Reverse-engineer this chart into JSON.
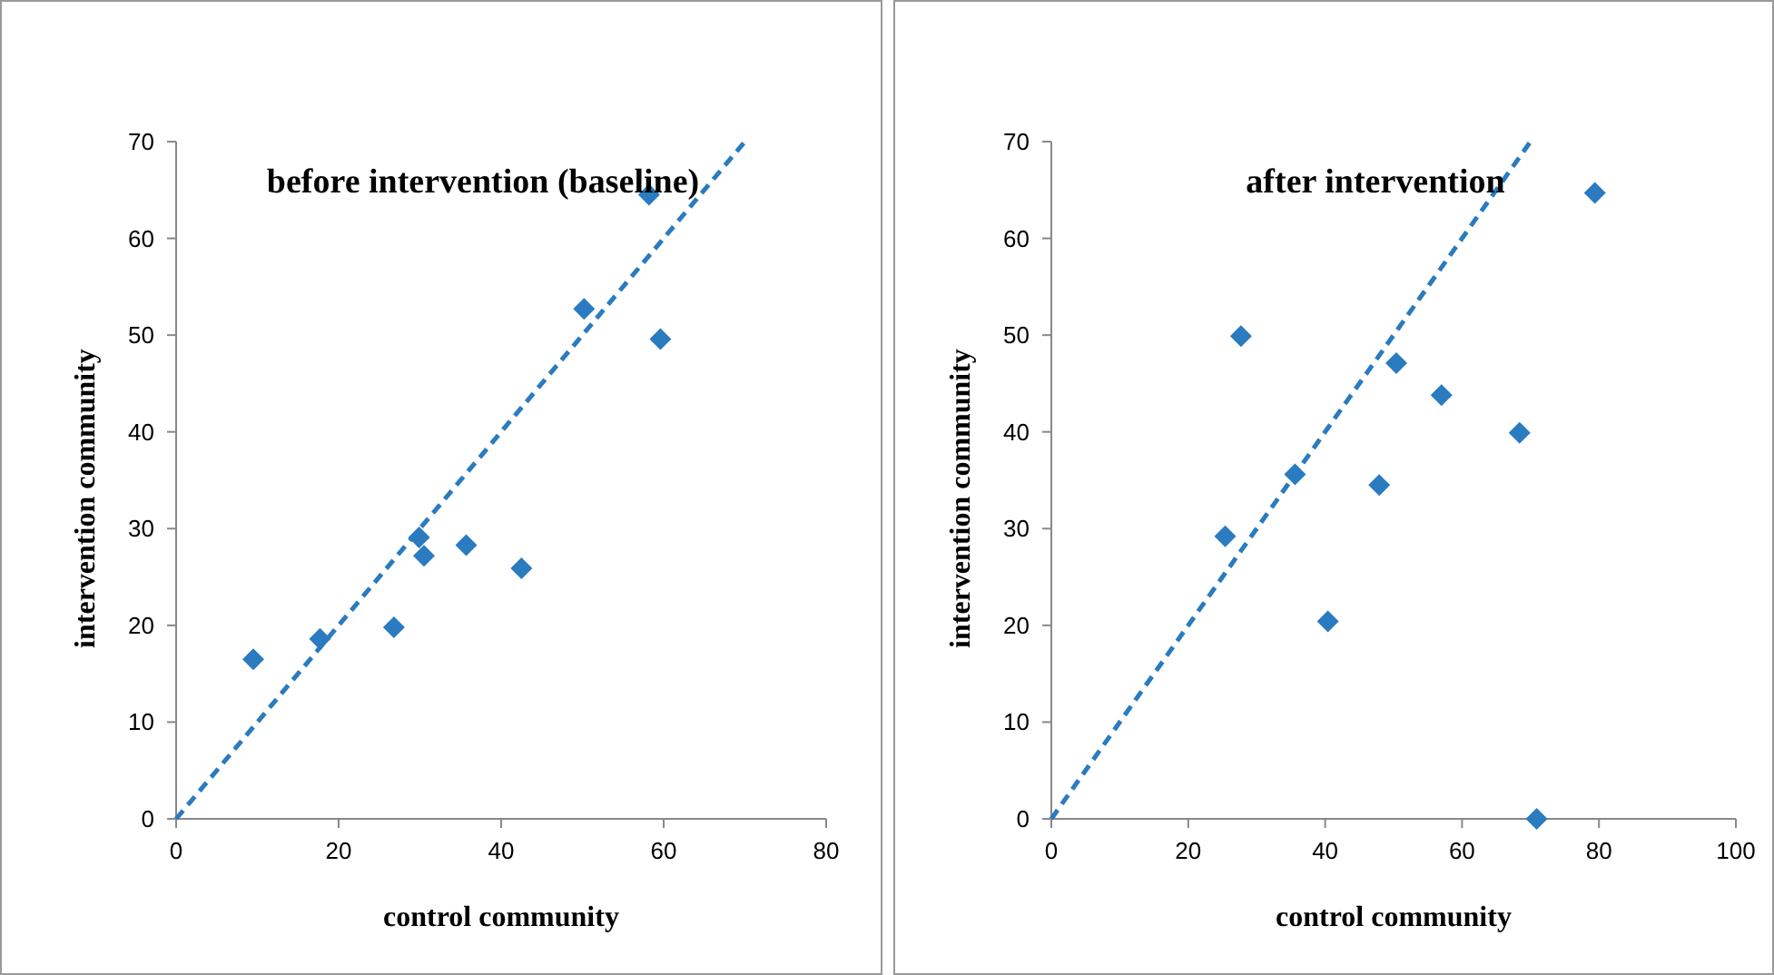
{
  "chart_data": [
    {
      "type": "scatter",
      "title": "before intervention (baseline)",
      "xlabel": "control community",
      "ylabel": "intervention community",
      "xlim": [
        0,
        80
      ],
      "xticks": [
        0,
        20,
        40,
        60,
        80
      ],
      "ylim": [
        0,
        70
      ],
      "yticks": [
        0,
        10,
        20,
        30,
        40,
        50,
        60,
        70
      ],
      "grid": false,
      "series": [
        {
          "color": "#2a7bbf",
          "marker": "diamond",
          "x": [
            9.5,
            17.7,
            26.8,
            29.9,
            30.5,
            35.7,
            42.5,
            50.2,
            58.2,
            59.6
          ],
          "values": [
            16.5,
            18.6,
            19.8,
            29.1,
            27.2,
            28.3,
            25.9,
            52.7,
            64.5,
            49.6
          ]
        },
        {
          "type": "line",
          "color": "#2a7bbf",
          "marker": "none",
          "line_style": "dashed",
          "x": [
            0,
            70
          ],
          "values": [
            0,
            70
          ]
        }
      ]
    },
    {
      "type": "scatter",
      "title": "after intervention",
      "xlabel": "control community",
      "ylabel": "intervention community",
      "xlim": [
        0,
        100
      ],
      "xticks": [
        0,
        20,
        40,
        60,
        80,
        100
      ],
      "ylim": [
        0,
        70
      ],
      "yticks": [
        0,
        10,
        20,
        30,
        40,
        50,
        60,
        70
      ],
      "grid": false,
      "series": [
        {
          "color": "#2a7bbf",
          "marker": "diamond",
          "x": [
            25.4,
            27.7,
            35.6,
            40.4,
            47.9,
            50.4,
            57.0,
            68.4,
            70.9,
            79.4
          ],
          "values": [
            29.2,
            49.9,
            35.6,
            20.4,
            34.5,
            47.1,
            43.8,
            39.9,
            0,
            64.7
          ]
        },
        {
          "type": "line",
          "color": "#2a7bbf",
          "marker": "none",
          "line_style": "dashed",
          "x": [
            0,
            70
          ],
          "values": [
            0,
            70
          ]
        }
      ]
    }
  ]
}
